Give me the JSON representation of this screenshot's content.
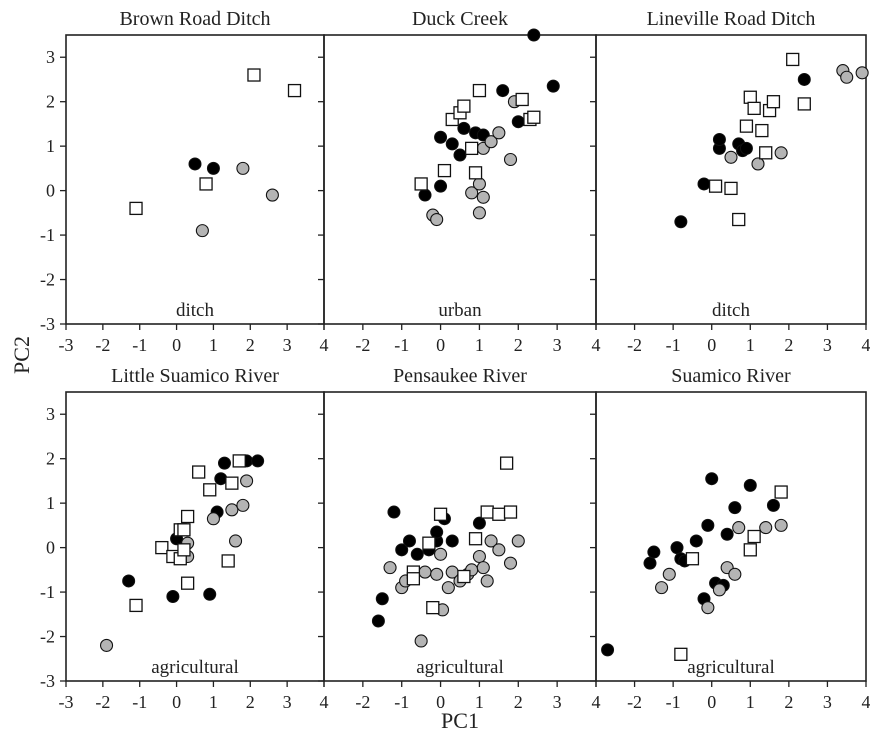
{
  "figure": {
    "xlabel": "PC1",
    "ylabel": "PC2"
  },
  "legend_note": "",
  "colors": {
    "filled": "#000000",
    "gray": "#b4b4b4",
    "open": "#ffffff",
    "stroke": "#111111"
  },
  "chart_data": [
    {
      "type": "scatter",
      "title": "Brown Road Ditch",
      "annotation": "ditch",
      "xlim": [
        -3,
        4
      ],
      "ylim": [
        -3,
        3.5
      ],
      "grid": false,
      "xticks": [
        "-3",
        "-2",
        "-1",
        "0",
        "1",
        "2",
        "3",
        "4"
      ],
      "yticks": [
        "-3",
        "-2",
        "-1",
        "0",
        "1",
        "2",
        "3"
      ],
      "series": [
        {
          "marker": "filled-circle",
          "points": [
            [
              0.5,
              0.6
            ],
            [
              1.0,
              0.5
            ]
          ]
        },
        {
          "marker": "gray-circle",
          "points": [
            [
              0.7,
              -0.9
            ],
            [
              1.8,
              0.5
            ],
            [
              2.6,
              -0.1
            ]
          ]
        },
        {
          "marker": "open-square",
          "points": [
            [
              -1.1,
              -0.4
            ],
            [
              0.8,
              0.15
            ],
            [
              2.1,
              2.6
            ],
            [
              3.2,
              2.25
            ]
          ]
        }
      ]
    },
    {
      "type": "scatter",
      "title": "Duck Creek",
      "annotation": "urban",
      "xlim": [
        -3,
        4
      ],
      "ylim": [
        -3,
        3.5
      ],
      "grid": false,
      "xticks": [
        "-3",
        "-2",
        "-1",
        "0",
        "1",
        "2",
        "3",
        "4"
      ],
      "yticks": [
        "-3",
        "-2",
        "-1",
        "0",
        "1",
        "2",
        "3"
      ],
      "series": [
        {
          "marker": "filled-circle",
          "points": [
            [
              -0.4,
              -0.1
            ],
            [
              0,
              0.1
            ],
            [
              0,
              1.2
            ],
            [
              0.3,
              1.05
            ],
            [
              0.5,
              0.8
            ],
            [
              0.6,
              1.4
            ],
            [
              0.9,
              1.3
            ],
            [
              1.1,
              1.25
            ],
            [
              1.6,
              2.25
            ],
            [
              2.0,
              1.55
            ],
            [
              2.4,
              3.5
            ],
            [
              2.9,
              2.35
            ]
          ]
        },
        {
          "marker": "gray-circle",
          "points": [
            [
              -0.2,
              -0.55
            ],
            [
              -0.1,
              -0.65
            ],
            [
              0.8,
              -0.05
            ],
            [
              1.0,
              -0.5
            ],
            [
              1.0,
              0.15
            ],
            [
              1.1,
              -0.15
            ],
            [
              1.1,
              0.95
            ],
            [
              1.3,
              1.1
            ],
            [
              1.5,
              1.3
            ],
            [
              1.8,
              0.7
            ],
            [
              1.9,
              2.0
            ],
            [
              2.3,
              1.6
            ]
          ]
        },
        {
          "marker": "open-square",
          "points": [
            [
              -0.5,
              0.15
            ],
            [
              0.1,
              0.45
            ],
            [
              0.3,
              1.6
            ],
            [
              0.5,
              1.75
            ],
            [
              0.6,
              1.9
            ],
            [
              0.8,
              0.95
            ],
            [
              0.9,
              0.4
            ],
            [
              1.0,
              2.25
            ],
            [
              2.1,
              2.05
            ],
            [
              2.3,
              1.6
            ],
            [
              2.4,
              1.65
            ]
          ]
        }
      ]
    },
    {
      "type": "scatter",
      "title": "Lineville Road Ditch",
      "annotation": "ditch",
      "xlim": [
        -3,
        4
      ],
      "ylim": [
        -3,
        3.5
      ],
      "grid": false,
      "xticks": [
        "-3",
        "-2",
        "-1",
        "0",
        "1",
        "2",
        "3",
        "4"
      ],
      "yticks": [
        "-3",
        "-2",
        "-1",
        "0",
        "1",
        "2",
        "3"
      ],
      "series": [
        {
          "marker": "filled-circle",
          "points": [
            [
              -0.8,
              -0.7
            ],
            [
              -0.2,
              0.15
            ],
            [
              0.2,
              0.95
            ],
            [
              0.2,
              1.15
            ],
            [
              0.7,
              1.05
            ],
            [
              0.8,
              0.9
            ],
            [
              0.9,
              0.95
            ],
            [
              2.4,
              2.5
            ]
          ]
        },
        {
          "marker": "gray-circle",
          "points": [
            [
              0.5,
              0.75
            ],
            [
              1.2,
              0.6
            ],
            [
              1.8,
              0.85
            ],
            [
              3.4,
              2.7
            ],
            [
              3.5,
              2.55
            ],
            [
              3.9,
              2.65
            ]
          ]
        },
        {
          "marker": "open-square",
          "points": [
            [
              0.1,
              0.1
            ],
            [
              0.5,
              0.05
            ],
            [
              0.7,
              -0.65
            ],
            [
              0.9,
              1.45
            ],
            [
              1.0,
              2.1
            ],
            [
              1.1,
              1.85
            ],
            [
              1.3,
              1.35
            ],
            [
              1.4,
              0.85
            ],
            [
              1.5,
              1.8
            ],
            [
              1.6,
              2.0
            ],
            [
              2.1,
              2.95
            ],
            [
              2.4,
              1.95
            ]
          ]
        }
      ]
    },
    {
      "type": "scatter",
      "title": "Little Suamico River",
      "annotation": "agricultural",
      "xlim": [
        -3,
        4
      ],
      "ylim": [
        -3,
        3.5
      ],
      "grid": false,
      "xticks": [
        "-3",
        "-2",
        "-1",
        "0",
        "1",
        "2",
        "3",
        "4"
      ],
      "yticks": [
        "-3",
        "-2",
        "-1",
        "0",
        "1",
        "2",
        "3"
      ],
      "series": [
        {
          "marker": "filled-circle",
          "points": [
            [
              -1.3,
              -0.75
            ],
            [
              -0.1,
              -1.1
            ],
            [
              0,
              0.2
            ],
            [
              0.9,
              -1.05
            ],
            [
              1.1,
              0.8
            ],
            [
              1.2,
              1.55
            ],
            [
              1.3,
              1.9
            ],
            [
              1.9,
              1.95
            ],
            [
              2.2,
              1.95
            ]
          ]
        },
        {
          "marker": "gray-circle",
          "points": [
            [
              -1.9,
              -2.2
            ],
            [
              0.3,
              -0.2
            ],
            [
              0.3,
              0.1
            ],
            [
              1.0,
              0.65
            ],
            [
              1.5,
              0.85
            ],
            [
              1.6,
              0.15
            ],
            [
              1.8,
              0.95
            ],
            [
              1.9,
              1.5
            ]
          ]
        },
        {
          "marker": "open-square",
          "points": [
            [
              -1.1,
              -1.3
            ],
            [
              -0.4,
              0
            ],
            [
              -0.1,
              -0.2
            ],
            [
              0.1,
              -0.25
            ],
            [
              0.1,
              0.4
            ],
            [
              0.2,
              -0.05
            ],
            [
              0.2,
              0.4
            ],
            [
              0.3,
              -0.8
            ],
            [
              0.3,
              0.7
            ],
            [
              0.6,
              1.7
            ],
            [
              0.9,
              1.3
            ],
            [
              1.4,
              -0.3
            ],
            [
              1.5,
              1.45
            ],
            [
              1.7,
              1.95
            ]
          ]
        }
      ]
    },
    {
      "type": "scatter",
      "title": "Pensaukee River",
      "annotation": "agricultural",
      "xlim": [
        -3,
        4
      ],
      "ylim": [
        -3,
        3.5
      ],
      "grid": false,
      "xticks": [
        "-3",
        "-2",
        "-1",
        "0",
        "1",
        "2",
        "3",
        "4"
      ],
      "yticks": [
        "-3",
        "-2",
        "-1",
        "0",
        "1",
        "2",
        "3"
      ],
      "series": [
        {
          "marker": "filled-circle",
          "points": [
            [
              -1.6,
              -1.65
            ],
            [
              -1.5,
              -1.15
            ],
            [
              -1.2,
              0.8
            ],
            [
              -1.0,
              -0.05
            ],
            [
              -0.8,
              0.15
            ],
            [
              -0.6,
              -0.15
            ],
            [
              -0.3,
              -0.05
            ],
            [
              -0.1,
              0.15
            ],
            [
              -0.1,
              0.35
            ],
            [
              0.1,
              0.65
            ],
            [
              0.3,
              0.15
            ],
            [
              1.0,
              0.55
            ]
          ]
        },
        {
          "marker": "gray-circle",
          "points": [
            [
              -1.3,
              -0.45
            ],
            [
              -1.0,
              -0.9
            ],
            [
              -0.9,
              -0.75
            ],
            [
              -0.5,
              -2.1
            ],
            [
              -0.4,
              -0.55
            ],
            [
              -0.1,
              -0.6
            ],
            [
              0,
              -0.15
            ],
            [
              0.05,
              -1.4
            ],
            [
              0.2,
              -0.9
            ],
            [
              0.3,
              -0.55
            ],
            [
              0.5,
              -0.75
            ],
            [
              0.7,
              -0.6
            ],
            [
              0.8,
              -0.5
            ],
            [
              1.0,
              -0.2
            ],
            [
              1.1,
              -0.45
            ],
            [
              1.2,
              -0.75
            ],
            [
              1.3,
              0.15
            ],
            [
              1.5,
              -0.05
            ],
            [
              1.8,
              -0.35
            ],
            [
              2.0,
              0.15
            ]
          ]
        },
        {
          "marker": "open-square",
          "points": [
            [
              -0.7,
              -0.55
            ],
            [
              -0.7,
              -0.7
            ],
            [
              -0.3,
              0.1
            ],
            [
              -0.2,
              -1.35
            ],
            [
              0,
              0.75
            ],
            [
              0.6,
              -0.65
            ],
            [
              0.9,
              0.2
            ],
            [
              1.2,
              0.8
            ],
            [
              1.5,
              0.75
            ],
            [
              1.7,
              1.9
            ],
            [
              1.8,
              0.8
            ]
          ]
        }
      ]
    },
    {
      "type": "scatter",
      "title": "Suamico River",
      "annotation": "agricultural",
      "xlim": [
        -3,
        4
      ],
      "ylim": [
        -3,
        3.5
      ],
      "grid": false,
      "xticks": [
        "-3",
        "-2",
        "-1",
        "0",
        "1",
        "2",
        "3",
        "4"
      ],
      "yticks": [
        "-3",
        "-2",
        "-1",
        "0",
        "1",
        "2",
        "3"
      ],
      "series": [
        {
          "marker": "filled-circle",
          "points": [
            [
              -2.7,
              -2.3
            ],
            [
              -1.6,
              -0.35
            ],
            [
              -1.5,
              -0.1
            ],
            [
              -0.9,
              0
            ],
            [
              -0.8,
              -0.25
            ],
            [
              -0.7,
              -0.3
            ],
            [
              -0.4,
              0.15
            ],
            [
              -0.2,
              -1.15
            ],
            [
              -0.1,
              0.5
            ],
            [
              0,
              1.55
            ],
            [
              0.1,
              -0.8
            ],
            [
              0.3,
              -0.85
            ],
            [
              0.4,
              0.3
            ],
            [
              0.6,
              0.9
            ],
            [
              1.0,
              1.4
            ],
            [
              1.6,
              0.95
            ]
          ]
        },
        {
          "marker": "gray-circle",
          "points": [
            [
              -1.3,
              -0.9
            ],
            [
              -1.1,
              -0.6
            ],
            [
              -0.1,
              -1.35
            ],
            [
              0.2,
              -0.95
            ],
            [
              0.4,
              -0.45
            ],
            [
              0.6,
              -0.6
            ],
            [
              0.7,
              0.45
            ],
            [
              1.4,
              0.45
            ],
            [
              1.8,
              0.5
            ]
          ]
        },
        {
          "marker": "open-square",
          "points": [
            [
              -0.8,
              -2.4
            ],
            [
              -0.5,
              -0.25
            ],
            [
              1.0,
              -0.05
            ],
            [
              1.1,
              0.25
            ],
            [
              1.8,
              1.25
            ]
          ]
        }
      ]
    }
  ]
}
